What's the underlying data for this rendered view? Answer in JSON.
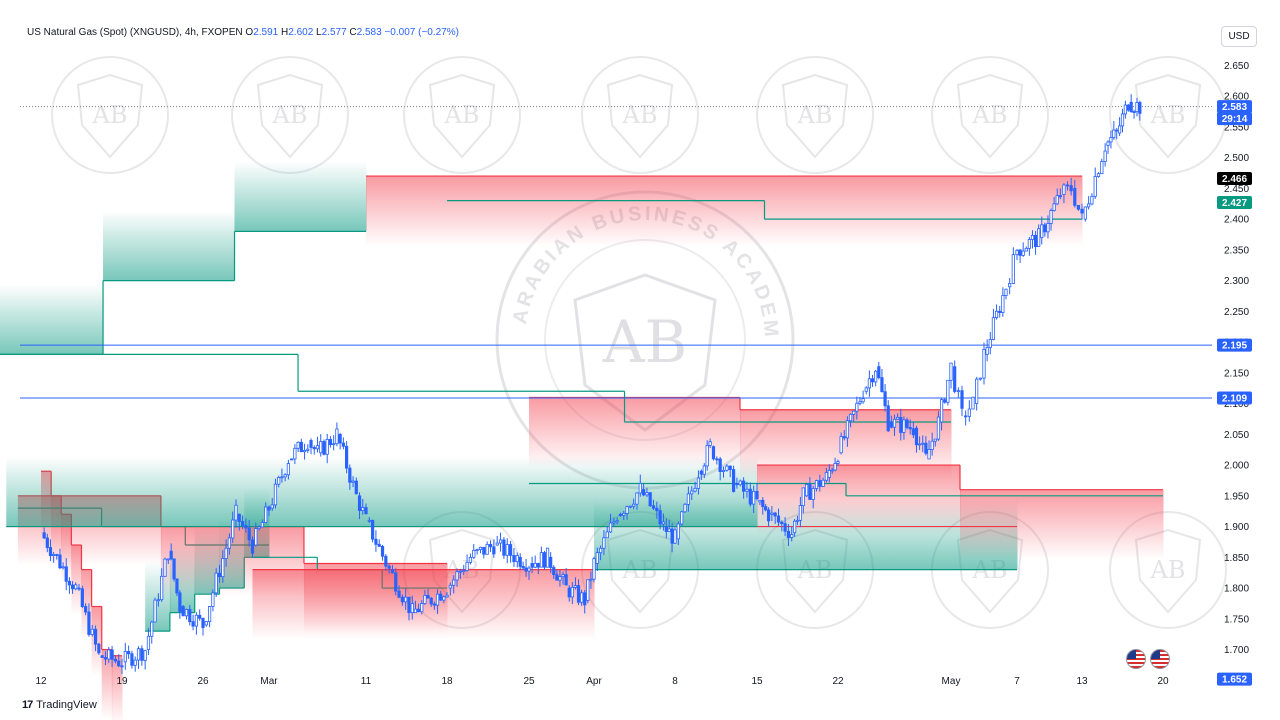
{
  "header": {
    "symbol": "US Natural Gas (Spot) (XNGUSD), 4h, FXOPEN",
    "o_label": "O",
    "o": "2.591",
    "h_label": "H",
    "h": "2.602",
    "l_label": "L",
    "l": "2.577",
    "c_label": "C",
    "c": "2.583",
    "change": "−0.007 (−0.27%)"
  },
  "currency_button": "USD",
  "brand": "TradingView",
  "watermark": {
    "monogram": "AB",
    "text": "ARABIAN BUSINESS ACADEMY"
  },
  "colors": {
    "bull": "#2962ff",
    "bear": "#2962ff",
    "hline": "#2962ff",
    "trail_up": "#089981",
    "trail_down": "#f23645",
    "label_bg": "#2962ff",
    "stop_bg": "#089981",
    "dark_label_bg": "#000000"
  },
  "chart_data": {
    "type": "line",
    "title": "US Natural Gas (Spot) (XNGUSD), 4h, FXOPEN",
    "ylim": [
      1.67,
      2.675
    ],
    "y_ticks": [
      "1.700",
      "1.750",
      "1.800",
      "1.850",
      "1.900",
      "1.950",
      "2.000",
      "2.050",
      "2.100",
      "2.150",
      "2.200",
      "2.250",
      "2.300",
      "2.350",
      "2.400",
      "2.450",
      "2.500",
      "2.550",
      "2.600",
      "2.650"
    ],
    "x_ticks": [
      "12",
      "19",
      "26",
      "Mar",
      "11",
      "18",
      "25",
      "Apr",
      "8",
      "15",
      "22",
      "May",
      "7",
      "13",
      "20"
    ],
    "grid": false,
    "price_path": [
      [
        "12",
        1.89
      ],
      [
        "15",
        1.8
      ],
      [
        "17",
        1.69
      ],
      [
        "19",
        1.68
      ],
      [
        "21",
        1.7
      ],
      [
        "23",
        1.86
      ],
      [
        "24",
        1.77
      ],
      [
        "26",
        1.74
      ],
      [
        "28",
        1.92
      ],
      [
        "29",
        1.87
      ],
      [
        "Mar",
        1.93
      ],
      [
        "3",
        2.01
      ],
      [
        "5",
        2.04
      ],
      [
        "6",
        2.02
      ],
      [
        "8",
        2.05
      ],
      [
        "10",
        1.95
      ],
      [
        "11",
        1.91
      ],
      [
        "13",
        1.83
      ],
      [
        "15",
        1.76
      ],
      [
        "18",
        1.8
      ],
      [
        "20",
        1.85
      ],
      [
        "22",
        1.87
      ],
      [
        "24",
        1.85
      ],
      [
        "25",
        1.84
      ],
      [
        "27",
        1.85
      ],
      [
        "29",
        1.8
      ],
      [
        "31",
        1.78
      ],
      [
        "Apr",
        1.84
      ],
      [
        "3",
        1.92
      ],
      [
        "5",
        1.96
      ],
      [
        "7",
        1.9
      ],
      [
        "8",
        1.88
      ],
      [
        "10",
        1.99
      ],
      [
        "11",
        2.03
      ],
      [
        "13",
        1.97
      ],
      [
        "15",
        1.94
      ],
      [
        "16",
        1.92
      ],
      [
        "18",
        1.89
      ],
      [
        "19",
        1.95
      ],
      [
        "21",
        1.98
      ],
      [
        "22",
        2.02
      ],
      [
        "24",
        2.12
      ],
      [
        "25",
        2.16
      ],
      [
        "26",
        2.07
      ],
      [
        "28",
        2.06
      ],
      [
        "29",
        2.01
      ],
      [
        "30",
        2.07
      ],
      [
        "May",
        2.16
      ],
      [
        "2",
        2.08
      ],
      [
        "3",
        2.1
      ],
      [
        "4",
        2.18
      ],
      [
        "6",
        2.29
      ],
      [
        "7",
        2.35
      ],
      [
        "9",
        2.37
      ],
      [
        "11",
        2.44
      ],
      [
        "12",
        2.45
      ],
      [
        "13",
        2.4
      ],
      [
        "15",
        2.52
      ],
      [
        "16",
        2.54
      ],
      [
        "17",
        2.59
      ],
      [
        "18",
        2.583
      ]
    ],
    "trailing_stop": [
      {
        "side": "down",
        "from": "12",
        "to": "19",
        "levels": [
          1.99,
          1.95,
          1.92,
          1.87,
          1.83,
          1.77,
          1.7,
          1.69
        ]
      },
      {
        "side": "up",
        "from": "21",
        "to": "Mar",
        "levels": [
          1.73,
          1.76,
          1.79,
          1.8,
          1.85
        ]
      },
      {
        "side": "up",
        "from": "Mar",
        "to": "10",
        "levels": [
          1.87,
          1.9,
          1.93
        ]
      },
      {
        "side": "down",
        "from": "10",
        "to": "18",
        "levels": [
          1.95,
          1.9,
          1.84
        ]
      },
      {
        "side": "up",
        "from": "18",
        "to": "29",
        "levels": [
          1.8,
          1.83,
          1.85
        ]
      },
      {
        "side": "down",
        "from": "29",
        "to": "Apr",
        "levels": [
          1.83
        ]
      },
      {
        "side": "up",
        "from": "Apr",
        "to": "7",
        "levels": [
          1.83
        ]
      },
      {
        "side": "down",
        "from": "7",
        "to": "9",
        "levels": [
          1.9
        ]
      },
      {
        "side": "up",
        "from": "9",
        "to": "15",
        "levels": [
          1.9
        ]
      },
      {
        "side": "down",
        "from": "15",
        "to": "20",
        "levels": [
          2.0,
          1.96
        ]
      },
      {
        "side": "up",
        "from": "20",
        "to": "25",
        "levels": [
          1.95,
          1.97
        ]
      },
      {
        "side": "down",
        "from": "25",
        "to": "May",
        "levels": [
          2.11,
          2.09
        ]
      },
      {
        "side": "up",
        "from": "May",
        "to": "6",
        "levels": [
          2.07,
          2.12,
          2.18
        ]
      },
      {
        "side": "up",
        "from": "6",
        "to": "11",
        "levels": [
          2.18,
          2.3,
          2.38
        ]
      },
      {
        "side": "down",
        "from": "11",
        "to": "13",
        "levels": [
          2.47
        ]
      },
      {
        "side": "up",
        "from": "13",
        "to": "18",
        "levels": [
          2.4,
          2.43
        ]
      }
    ],
    "horizontal_levels": [
      2.195,
      2.109
    ],
    "current_price": 2.583,
    "price_labels": [
      {
        "value": 2.583,
        "text": "2.583",
        "style": "blue"
      },
      {
        "value": 2.55,
        "text": "29:14",
        "style": "blue"
      },
      {
        "value": 2.466,
        "text": "2.466",
        "style": "dark"
      },
      {
        "value": 2.427,
        "text": "2.427",
        "style": "green"
      },
      {
        "value": 2.195,
        "text": "2.195",
        "style": "blue"
      },
      {
        "value": 2.109,
        "text": "2.109",
        "style": "blue"
      },
      {
        "value": 1.652,
        "text": "1.652",
        "style": "blue"
      }
    ]
  }
}
